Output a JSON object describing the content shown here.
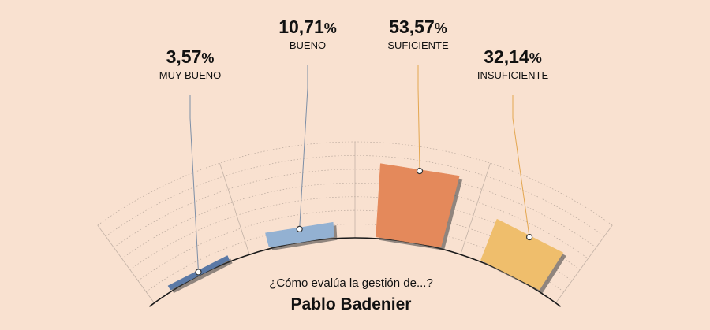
{
  "chart_data": {
    "type": "bar",
    "categories": [
      "MUY BUENO",
      "BUENO",
      "SUFICIENTE",
      "INSUFICIENTE"
    ],
    "values": [
      3.57,
      10.71,
      53.57,
      32.14
    ],
    "value_labels": [
      "3,57",
      "10,71",
      "53,57",
      "32,14"
    ],
    "unit": "%",
    "ylim": [
      0,
      70
    ],
    "title": "¿Cómo evalúa la gestión de...?",
    "subtitle": "Pablo Badenier",
    "colors": [
      "#5b79a6",
      "#93b1d2",
      "#e4895b",
      "#efbe6c"
    ],
    "grid": true
  }
}
